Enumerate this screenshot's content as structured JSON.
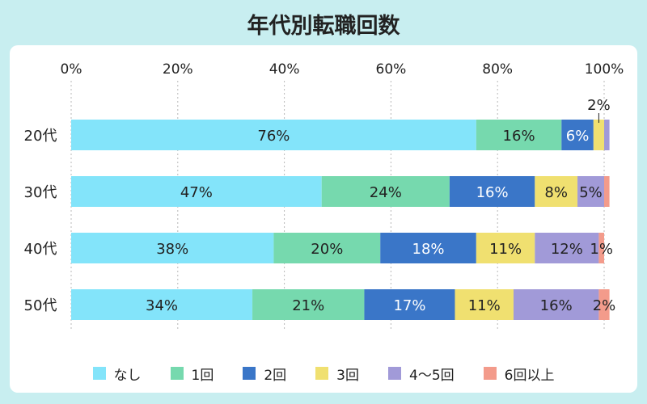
{
  "chart_data": {
    "type": "bar",
    "orientation": "horizontal",
    "stacked": true,
    "title": "年代別転職回数",
    "categories": [
      "20代",
      "30代",
      "40代",
      "50代"
    ],
    "series": [
      {
        "name": "なし",
        "color": "#83e4fa",
        "values": [
          76,
          47,
          38,
          34
        ],
        "labels": [
          "76%",
          "47%",
          "38%",
          "34%"
        ]
      },
      {
        "name": "1回",
        "color": "#76d9ae",
        "values": [
          16,
          24,
          20,
          21
        ],
        "labels": [
          "16%",
          "24%",
          "20%",
          "21%"
        ]
      },
      {
        "name": "2回",
        "color": "#3a76c8",
        "values": [
          6,
          16,
          18,
          17
        ],
        "labels": [
          "6%",
          "16%",
          "18%",
          "17%"
        ]
      },
      {
        "name": "3回",
        "color": "#f0e070",
        "values": [
          2,
          8,
          11,
          11
        ],
        "labels": [
          "2%",
          "8%",
          "11%",
          "11%"
        ]
      },
      {
        "name": "4～5回",
        "color": "#a19ad8",
        "values": [
          1,
          5,
          12,
          16
        ],
        "labels": [
          "",
          "5%",
          "12%",
          "16%"
        ]
      },
      {
        "name": "6回以上",
        "color": "#f39b8b",
        "values": [
          0,
          1,
          1,
          2
        ],
        "labels": [
          "",
          "",
          "1%",
          "2%"
        ]
      }
    ],
    "xlim": [
      0,
      100
    ],
    "xticks": [
      "0%",
      "20%",
      "40%",
      "60%",
      "80%",
      "100%"
    ],
    "grid": true,
    "legend_position": "bottom"
  },
  "legend": [
    {
      "label": "なし",
      "color": "#83e4fa"
    },
    {
      "label": "1回",
      "color": "#76d9ae"
    },
    {
      "label": "2回",
      "color": "#3a76c8"
    },
    {
      "label": "3回",
      "color": "#f0e070"
    },
    {
      "label": "4～5回",
      "color": "#a19ad8"
    },
    {
      "label": "6回以上",
      "color": "#f39b8b"
    }
  ]
}
